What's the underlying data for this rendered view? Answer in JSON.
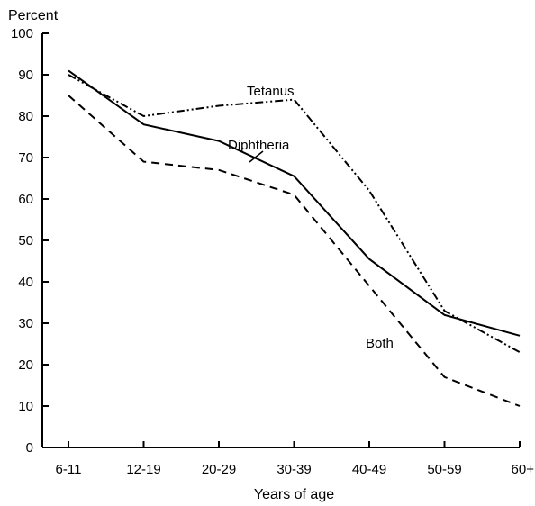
{
  "chart_data": {
    "type": "line",
    "title": "",
    "xlabel": "Years of age",
    "ylabel": "Percent",
    "ylim": [
      0,
      100
    ],
    "yticks": [
      0,
      10,
      20,
      30,
      40,
      50,
      60,
      70,
      80,
      90,
      100
    ],
    "categories": [
      "6-11",
      "12-19",
      "20-29",
      "30-39",
      "40-49",
      "50-59",
      "60+"
    ],
    "grid": false,
    "legend": "inline-labels",
    "series": [
      {
        "name": "Tetanus",
        "style": "dash-dot-dot",
        "color": "#000000",
        "values": [
          90,
          80,
          82.5,
          84,
          62,
          33,
          23
        ]
      },
      {
        "name": "Diphtheria",
        "style": "solid",
        "color": "#000000",
        "values": [
          91,
          78,
          74,
          65.5,
          45.5,
          32,
          27
        ]
      },
      {
        "name": "Both",
        "style": "dashed",
        "color": "#000000",
        "values": [
          85,
          69,
          67,
          61,
          39,
          17,
          10
        ]
      }
    ]
  }
}
